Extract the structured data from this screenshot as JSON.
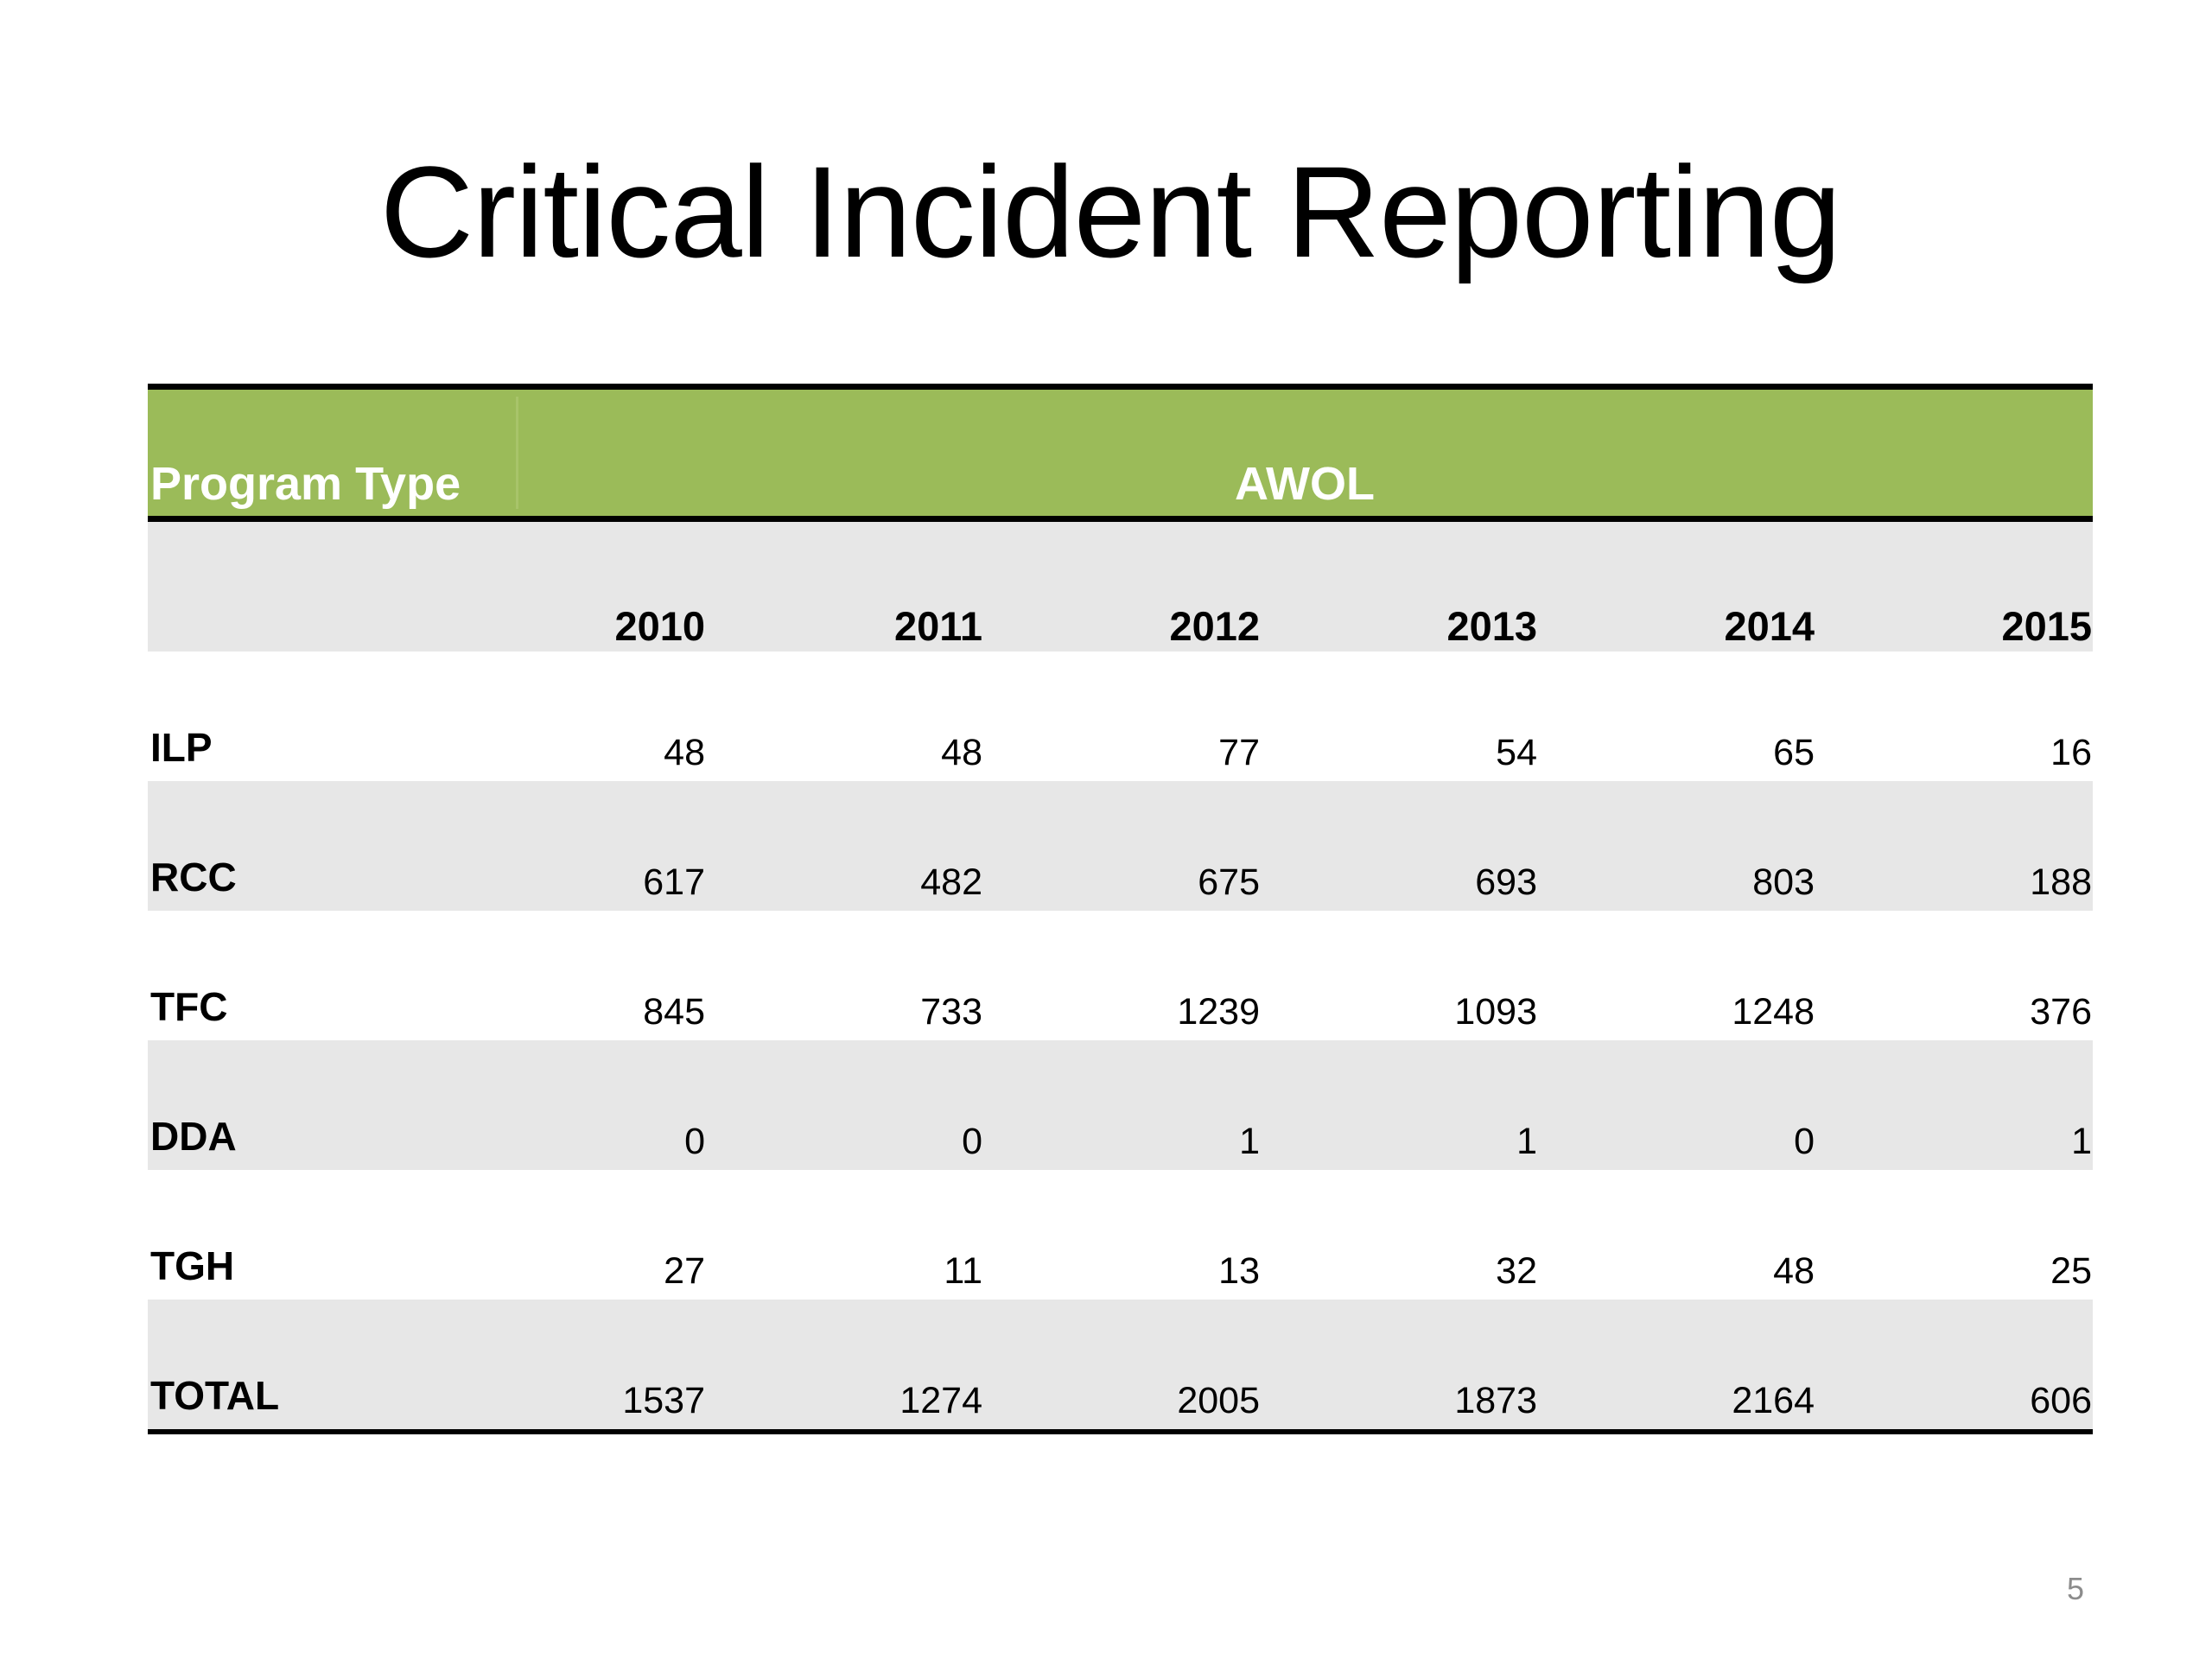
{
  "slide": {
    "title": "Critical Incident Reporting",
    "page_number": "5"
  },
  "table": {
    "header": {
      "program_type": "Program Type",
      "group": "AWOL"
    },
    "years": [
      "2010",
      "2011",
      "2012",
      "2013",
      "2014",
      "2015"
    ],
    "rows": [
      {
        "label": "ILP",
        "values": [
          "48",
          "48",
          "77",
          "54",
          "65",
          "16"
        ]
      },
      {
        "label": "RCC",
        "values": [
          "617",
          "482",
          "675",
          "693",
          "803",
          "188"
        ]
      },
      {
        "label": "TFC",
        "values": [
          "845",
          "733",
          "1239",
          "1093",
          "1248",
          "376"
        ]
      },
      {
        "label": "DDA",
        "values": [
          "0",
          "0",
          "1",
          "1",
          "0",
          "1"
        ]
      },
      {
        "label": "TGH",
        "values": [
          "27",
          "11",
          "13",
          "32",
          "48",
          "25"
        ]
      },
      {
        "label": "TOTAL",
        "values": [
          "1537",
          "1274",
          "2005",
          "1873",
          "2164",
          "606"
        ]
      }
    ]
  },
  "colors": {
    "header_fill": "#9bbb59",
    "band_fill": "#e7e7e7",
    "rule": "#000000"
  }
}
